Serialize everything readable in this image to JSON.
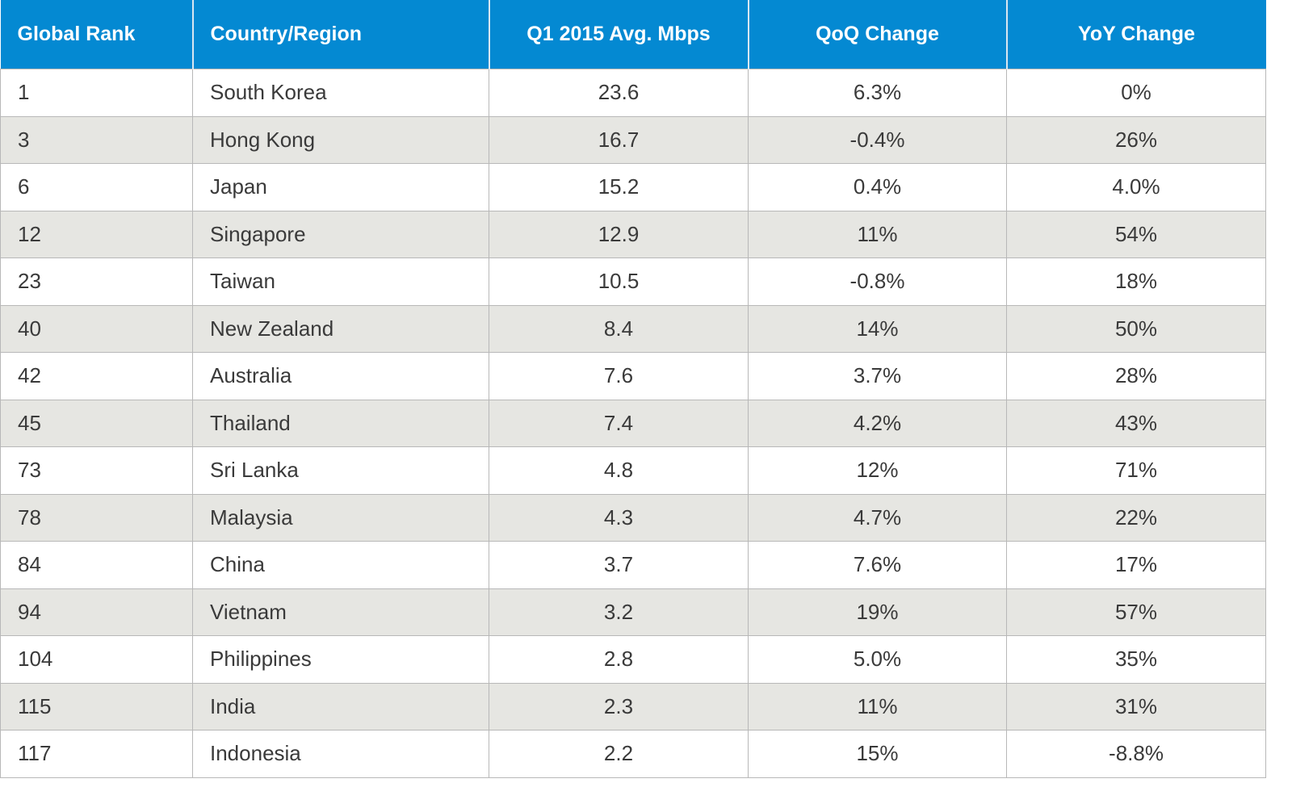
{
  "table": {
    "header": [
      "Global Rank",
      "Country/Region",
      "Q1 2015 Avg. Mbps",
      "QoQ Change",
      "YoY Change"
    ],
    "rows": [
      [
        "1",
        "South Korea",
        "23.6",
        "6.3%",
        "0%"
      ],
      [
        "3",
        "Hong Kong",
        "16.7",
        "-0.4%",
        "26%"
      ],
      [
        "6",
        "Japan",
        "15.2",
        "0.4%",
        "4.0%"
      ],
      [
        "12",
        "Singapore",
        "12.9",
        "11%",
        "54%"
      ],
      [
        "23",
        "Taiwan",
        "10.5",
        "-0.8%",
        "18%"
      ],
      [
        "40",
        "New Zealand",
        "8.4",
        "14%",
        "50%"
      ],
      [
        "42",
        "Australia",
        "7.6",
        "3.7%",
        "28%"
      ],
      [
        "45",
        "Thailand",
        "7.4",
        "4.2%",
        "43%"
      ],
      [
        "73",
        "Sri Lanka",
        "4.8",
        "12%",
        "71%"
      ],
      [
        "78",
        "Malaysia",
        "4.3",
        "4.7%",
        "22%"
      ],
      [
        "84",
        "China",
        "3.7",
        "7.6%",
        "17%"
      ],
      [
        "94",
        "Vietnam",
        "3.2",
        "19%",
        "57%"
      ],
      [
        "104",
        "Philippines",
        "2.8",
        "5.0%",
        "35%"
      ],
      [
        "115",
        "India",
        "2.3",
        "11%",
        "31%"
      ],
      [
        "117",
        "Indonesia",
        "2.2",
        "15%",
        "-8.8%"
      ]
    ]
  }
}
